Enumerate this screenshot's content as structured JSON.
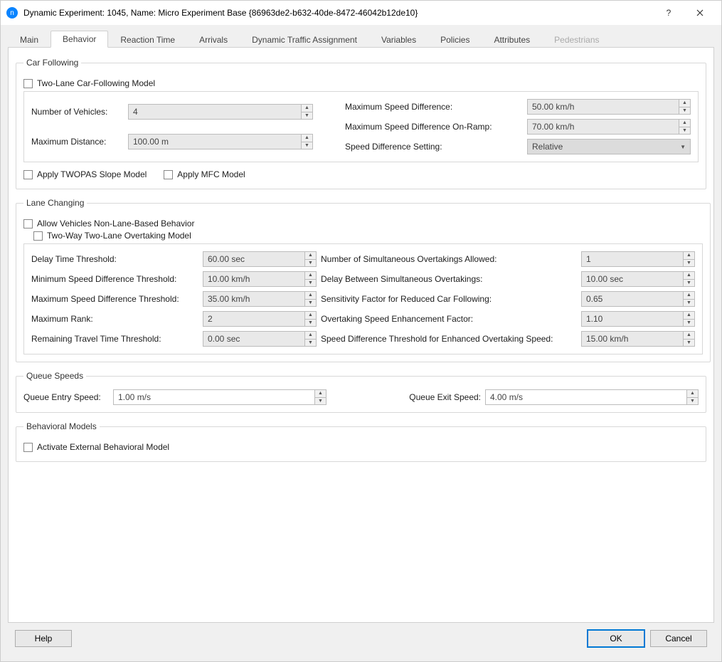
{
  "window": {
    "title": "Dynamic Experiment: 1045, Name: Micro Experiment Base  {86963de2-b632-40de-8472-46042b12de10}"
  },
  "tabs": {
    "items": [
      "Main",
      "Behavior",
      "Reaction Time",
      "Arrivals",
      "Dynamic Traffic Assignment",
      "Variables",
      "Policies",
      "Attributes",
      "Pedestrians"
    ],
    "active_index": 1,
    "disabled_index": 8
  },
  "carFollowing": {
    "legend": "Car Following",
    "twoLane_label": "Two-Lane Car-Following Model",
    "numVehicles_label": "Number of Vehicles:",
    "numVehicles_value": "4",
    "maxDistance_label": "Maximum Distance:",
    "maxDistance_value": "100.00 m",
    "maxSpeedDiff_label": "Maximum Speed Difference:",
    "maxSpeedDiff_value": "50.00 km/h",
    "maxSpeedDiffRamp_label": "Maximum Speed Difference On-Ramp:",
    "maxSpeedDiffRamp_value": "70.00 km/h",
    "speedDiffSetting_label": "Speed Difference Setting:",
    "speedDiffSetting_value": "Relative",
    "twopas_label": "Apply TWOPAS Slope Model",
    "mfc_label": "Apply MFC Model"
  },
  "laneChanging": {
    "legend": "Lane Changing",
    "allowNonLane_label": "Allow Vehicles Non-Lane-Based Behavior",
    "twoWay_label": "Two-Way Two-Lane Overtaking Model",
    "delayTime_label": "Delay Time Threshold:",
    "delayTime_value": "60.00 sec",
    "minSpeedDiff_label": "Minimum Speed Difference Threshold:",
    "minSpeedDiff_value": "10.00 km/h",
    "maxSpeedDiff_label": "Maximum Speed Difference Threshold:",
    "maxSpeedDiff_value": "35.00 km/h",
    "maxRank_label": "Maximum Rank:",
    "maxRank_value": "2",
    "remainTravel_label": "Remaining Travel Time Threshold:",
    "remainTravel_value": "0.00 sec",
    "numSimOvertake_label": "Number of Simultaneous Overtakings Allowed:",
    "numSimOvertake_value": "1",
    "delayBetween_label": "Delay Between Simultaneous Overtakings:",
    "delayBetween_value": "10.00 sec",
    "sensitivity_label": "Sensitivity Factor for Reduced Car Following:",
    "sensitivity_value": "0.65",
    "enhanceFactor_label": "Overtaking Speed Enhancement Factor:",
    "enhanceFactor_value": "1.10",
    "speedDiffEnhanced_label": "Speed Difference Threshold for Enhanced Overtaking Speed:",
    "speedDiffEnhanced_value": "15.00 km/h"
  },
  "queueSpeeds": {
    "legend": "Queue Speeds",
    "entry_label": "Queue Entry Speed:",
    "entry_value": "1.00 m/s",
    "exit_label": "Queue Exit Speed:",
    "exit_value": "4.00 m/s"
  },
  "behavioralModels": {
    "legend": "Behavioral Models",
    "activate_label": "Activate External Behavioral Model"
  },
  "footer": {
    "help": "Help",
    "ok": "OK",
    "cancel": "Cancel"
  }
}
